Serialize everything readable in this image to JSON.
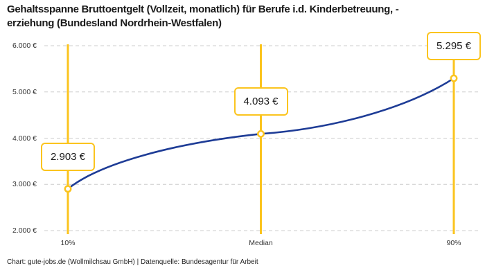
{
  "title_lines": [
    "Gehaltsspanne Bruttoentgelt (Vollzeit, monatlich) für Berufe i.d. Kinderbetreuung, -",
    "erziehung (Bundesland Nordrhein-Westfalen)"
  ],
  "footer": "Chart: gute-jobs.de (Wollmilchsau GmbH) | Datenquelle: Bundesagentur für Arbeit",
  "colors": {
    "accent_yellow": "#FBC41E",
    "line_blue": "#1E3C96",
    "grid_gray": "#CCCCCC",
    "text_dark": "#1A1A1A",
    "text_label": "#333333",
    "background": "#FFFFFF"
  },
  "chart_data": {
    "type": "line",
    "title": "Gehaltsspanne Bruttoentgelt (Vollzeit, monatlich) für Berufe i.d. Kinderbetreuung, -erziehung (Bundesland Nordrhein-Westfalen)",
    "x_percentiles": [
      10,
      50,
      90
    ],
    "categories": [
      "10%",
      "Median",
      "90%"
    ],
    "values": [
      2903,
      4093,
      5295
    ],
    "point_labels": [
      "2.903 €",
      "4.093 €",
      "5.295 €"
    ],
    "y_ticks": [
      2000,
      3000,
      4000,
      5000,
      6000
    ],
    "y_tick_labels": [
      "2.000 €",
      "3.000 €",
      "4.000 €",
      "5.000 €",
      "6.000 €"
    ],
    "ylim": [
      2000,
      6000
    ],
    "xlim_percentile": [
      5,
      95
    ],
    "grid": "horizontal-dashed",
    "legend": "none",
    "marker_color": "#FBC41E",
    "line_color": "#1E3C96",
    "unit": "€",
    "x_axis_meaning": "salary percentile",
    "y_axis_meaning": "gross monthly salary (full time)"
  }
}
